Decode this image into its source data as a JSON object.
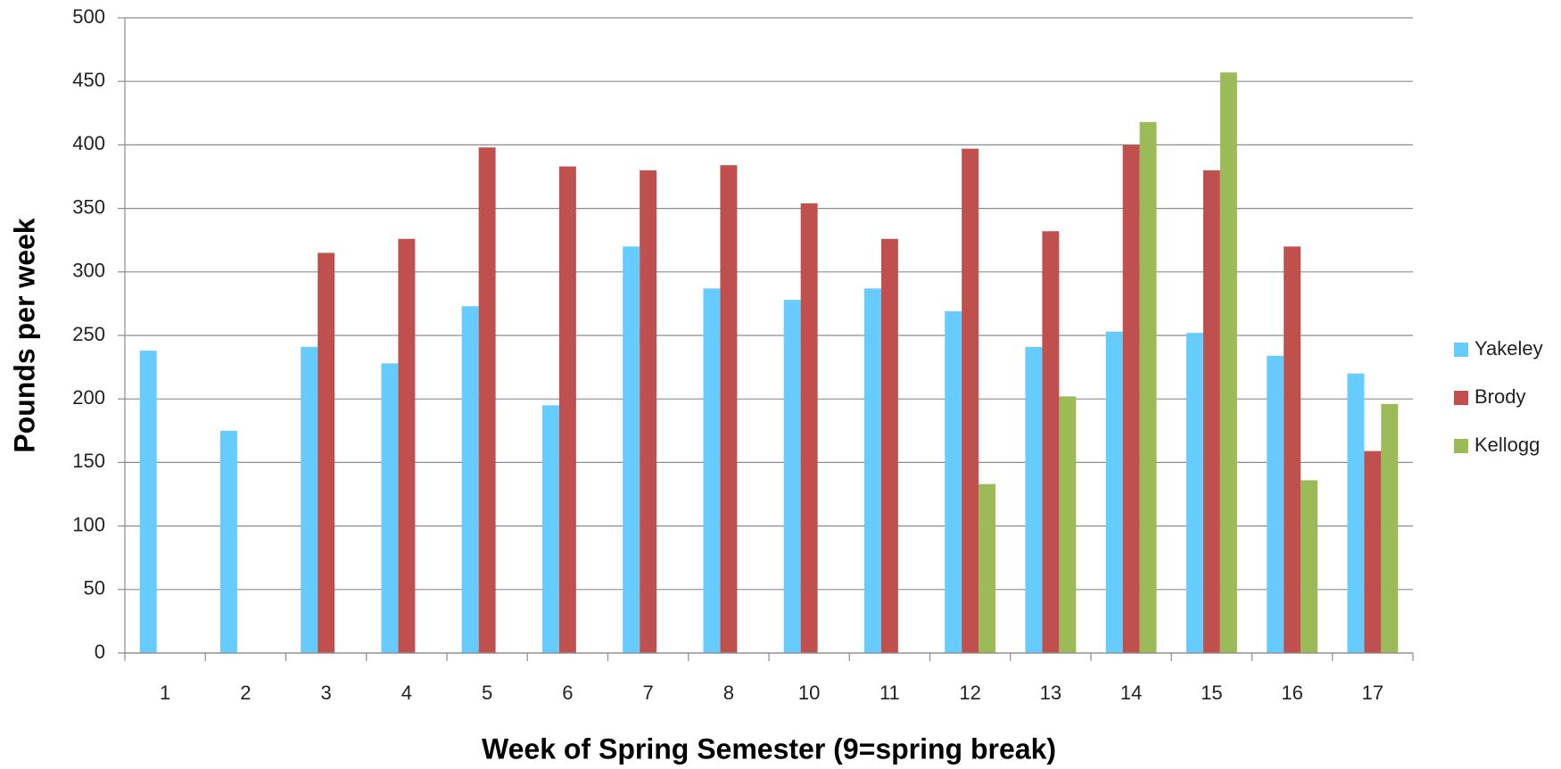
{
  "chart_data": {
    "type": "bar",
    "x_label": "Week of Spring Semester (9=spring break)",
    "y_label": "Pounds per week",
    "categories": [
      "1",
      "2",
      "3",
      "4",
      "5",
      "6",
      "7",
      "8",
      "10",
      "11",
      "12",
      "13",
      "14",
      "15",
      "16",
      "17"
    ],
    "series": [
      {
        "name": "Yakeley",
        "color": "#66ccff",
        "values": [
          238,
          175,
          241,
          228,
          273,
          195,
          320,
          287,
          278,
          287,
          269,
          241,
          253,
          252,
          234,
          220
        ]
      },
      {
        "name": "Brody",
        "color": "#c0504d",
        "values": [
          null,
          null,
          315,
          326,
          398,
          383,
          380,
          384,
          354,
          326,
          397,
          332,
          400,
          380,
          320,
          159
        ]
      },
      {
        "name": "Kellogg",
        "color": "#9bbb59",
        "values": [
          null,
          null,
          null,
          null,
          null,
          null,
          null,
          null,
          null,
          null,
          133,
          202,
          418,
          457,
          136,
          196
        ]
      }
    ],
    "ylim": [
      0,
      500
    ],
    "yticks": [
      0,
      50,
      100,
      150,
      200,
      250,
      300,
      350,
      400,
      450,
      500
    ],
    "grid": true,
    "legend": "right"
  }
}
